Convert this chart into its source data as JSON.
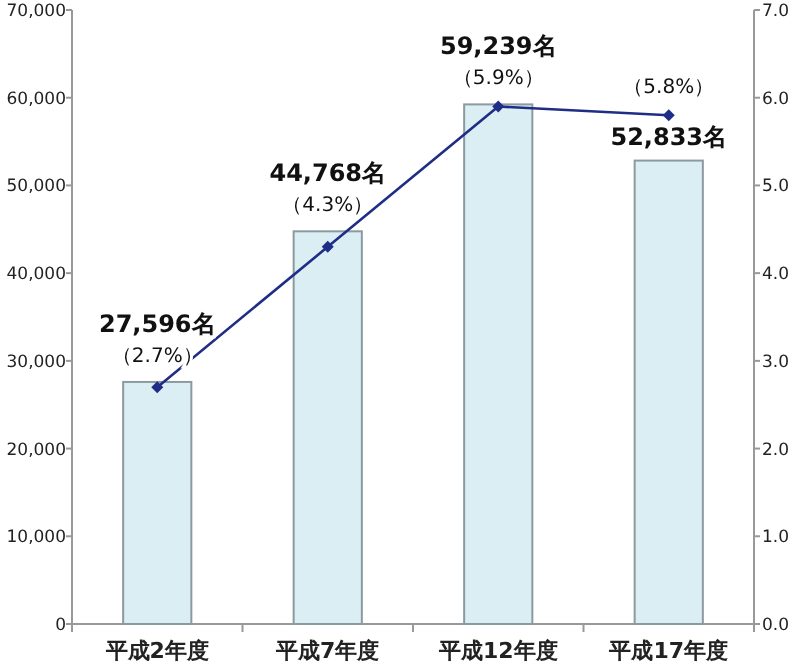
{
  "chart_data": {
    "type": "bar",
    "categories": [
      "平成2年度",
      "平成7年度",
      "平成12年度",
      "平成17年度"
    ],
    "series": [
      {
        "color": "#daeef3",
        "values": [
          27596,
          44768,
          59239,
          52833
        ],
        "value_labels": [
          "27,596名",
          "44,768名",
          "59,239名",
          "52,833名"
        ]
      },
      {
        "type": "line",
        "axis": "y2",
        "color": "#1f2d86",
        "marker": "diamond",
        "values": [
          2.7,
          4.3,
          5.9,
          5.8
        ],
        "value_labels": [
          "（2.7%）",
          "（4.3%）",
          "（5.9%）",
          "（5.8%）"
        ]
      }
    ],
    "ylim": [
      0,
      70000
    ],
    "yticks": [
      {
        "value": 0,
        "label": "0"
      },
      {
        "value": 10000,
        "label": "10,000"
      },
      {
        "value": 20000,
        "label": "20,000"
      },
      {
        "value": 30000,
        "label": "30,000"
      },
      {
        "value": 40000,
        "label": "40,000"
      },
      {
        "value": 50000,
        "label": "50,000"
      },
      {
        "value": 60000,
        "label": "60,000"
      },
      {
        "value": 70000,
        "label": "70,000"
      }
    ],
    "y2lim": [
      0,
      7
    ],
    "y2ticks": [
      {
        "value": 0,
        "label": "0.0"
      },
      {
        "value": 1,
        "label": "1.0"
      },
      {
        "value": 2,
        "label": "2.0"
      },
      {
        "value": 3,
        "label": "3.0"
      },
      {
        "value": 4,
        "label": "4.0"
      },
      {
        "value": 5,
        "label": "5.0"
      },
      {
        "value": 6,
        "label": "6.0"
      },
      {
        "value": 7,
        "label": "7.0"
      }
    ],
    "grid": false
  }
}
